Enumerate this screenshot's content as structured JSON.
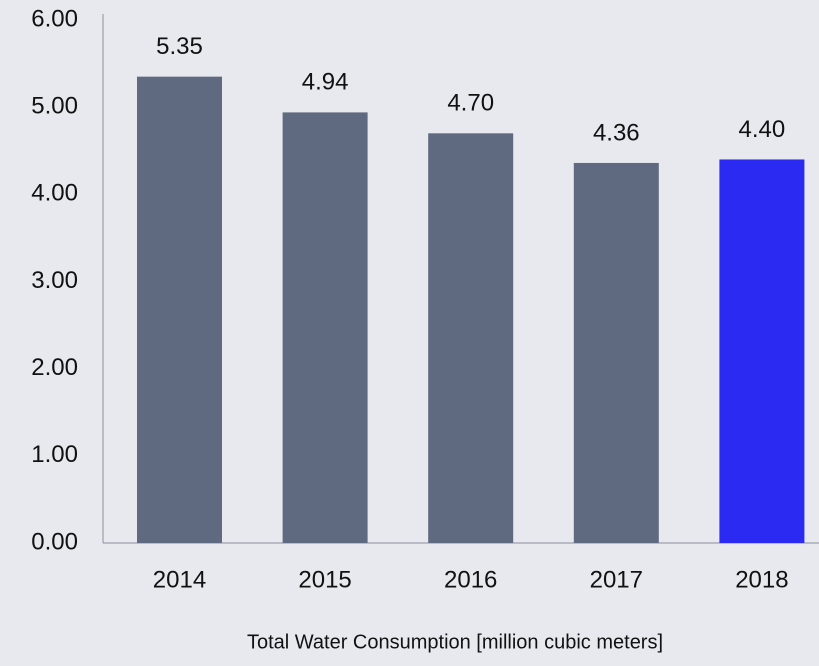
{
  "chart_data": {
    "type": "bar",
    "title": "Total Water Consumption [million cubic meters]",
    "categories": [
      "2014",
      "2015",
      "2016",
      "2017",
      "2018"
    ],
    "values": [
      5.35,
      4.94,
      4.7,
      4.36,
      4.4
    ],
    "value_labels": [
      "5.35",
      "4.94",
      "4.70",
      "4.36",
      "4.40"
    ],
    "colors": [
      "#5f6a80",
      "#5f6a80",
      "#5f6a80",
      "#5f6a80",
      "#2a2af2"
    ],
    "ylim": [
      0,
      6
    ],
    "yticks": [
      {
        "value": 0,
        "label": "0.00"
      },
      {
        "value": 1,
        "label": "1.00"
      },
      {
        "value": 2,
        "label": "2.00"
      },
      {
        "value": 3,
        "label": "3.00"
      },
      {
        "value": 4,
        "label": "4.00"
      },
      {
        "value": 5,
        "label": "5.00"
      },
      {
        "value": 6,
        "label": "6.00"
      }
    ],
    "grid": false
  }
}
